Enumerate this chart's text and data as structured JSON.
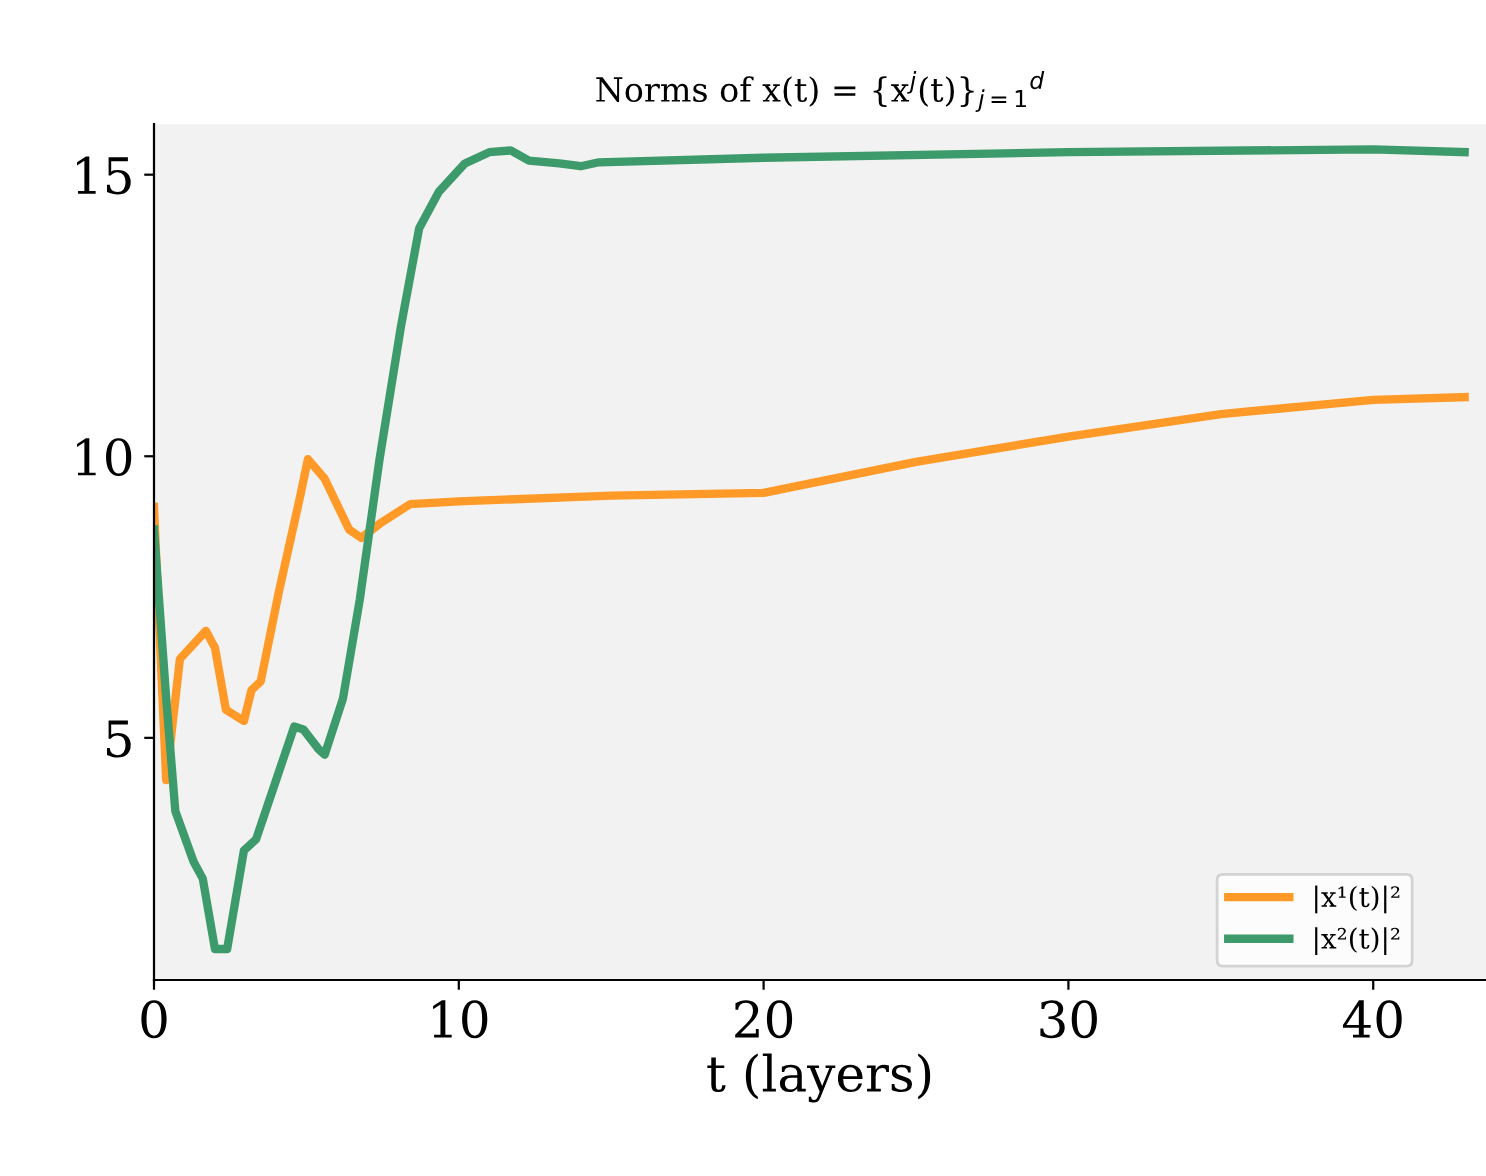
{
  "chart_data": {
    "type": "line",
    "title": "Norms of x(t) = {x$^{j}$(t)}$_{j=1}$$^{d}$",
    "xlabel": "t (layers)",
    "xlim": [
      0,
      43.7
    ],
    "xticks": [
      0,
      10,
      20,
      30,
      40
    ],
    "ylim": [
      0.7,
      15.9
    ],
    "yticks": [
      5,
      10,
      15
    ],
    "grid": false,
    "legend": "bottom right",
    "marker": "none",
    "line_style": "solid",
    "series": [
      {
        "name": "|x¹(t)|²",
        "color": "#ff9a28",
        "x": [
          0,
          0.4,
          0.85,
          1.7,
          2.0,
          2.36,
          2.95,
          3.2,
          3.5,
          4.1,
          4.8,
          5.05,
          5.6,
          6.4,
          6.8,
          7.4,
          8.4,
          10,
          15,
          20,
          25,
          30,
          35,
          40,
          43
        ],
        "values": [
          9.1,
          4.25,
          6.4,
          6.9,
          6.6,
          5.5,
          5.3,
          5.85,
          6.0,
          7.6,
          9.3,
          9.95,
          9.6,
          8.7,
          8.55,
          8.8,
          9.15,
          9.2,
          9.3,
          9.35,
          9.9,
          10.35,
          10.75,
          11.0,
          11.05
        ]
      },
      {
        "name": "|x²(t)|²",
        "color": "#3d9a6a",
        "x": [
          0,
          0.4,
          0.7,
          1.3,
          1.6,
          2.0,
          2.4,
          2.95,
          3.35,
          4.1,
          4.6,
          4.9,
          5.4,
          5.6,
          6.2,
          6.75,
          7.4,
          8.1,
          8.7,
          9.35,
          10.2,
          11.0,
          11.7,
          12.3,
          13.3,
          14.0,
          14.6,
          20,
          30,
          40,
          43
        ],
        "values": [
          8.7,
          5.7,
          3.7,
          2.8,
          2.5,
          1.25,
          1.25,
          3.0,
          3.2,
          4.4,
          5.2,
          5.15,
          4.8,
          4.7,
          5.7,
          7.45,
          9.95,
          12.3,
          14.05,
          14.7,
          15.2,
          15.4,
          15.43,
          15.25,
          15.2,
          15.15,
          15.22,
          15.3,
          15.4,
          15.45,
          15.4
        ]
      }
    ]
  }
}
